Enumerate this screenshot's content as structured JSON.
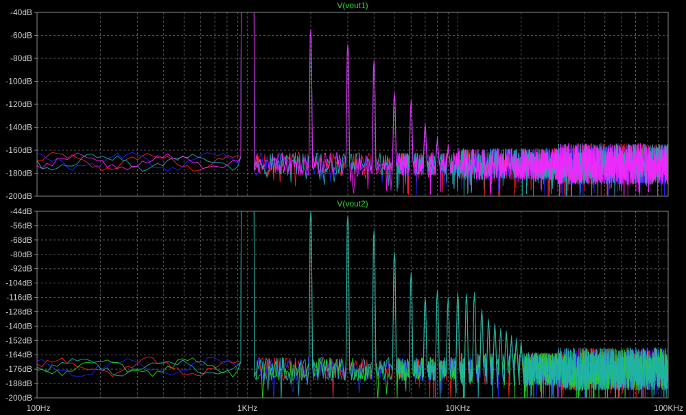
{
  "chart_data": [
    {
      "type": "line",
      "title": "V(vout1)",
      "x_scale": "log",
      "xlim": [
        100,
        100000
      ],
      "ylim": [
        -200,
        -40
      ],
      "y_ticks": [
        "-40dB",
        "-60dB",
        "-80dB",
        "-100dB",
        "-120dB",
        "-140dB",
        "-160dB",
        "-180dB",
        "-200dB"
      ],
      "grid": true,
      "harmonics": [
        {
          "freq": 1000,
          "db": -40
        },
        {
          "freq": 2000,
          "db": -57
        },
        {
          "freq": 3000,
          "db": -70
        },
        {
          "freq": 4000,
          "db": -84
        },
        {
          "freq": 5000,
          "db": -112
        },
        {
          "freq": 6000,
          "db": -118
        },
        {
          "freq": 7000,
          "db": -138
        },
        {
          "freq": 8000,
          "db": -150
        },
        {
          "freq": 9000,
          "db": -157
        }
      ],
      "noise_floor_db": -172,
      "series": [
        {
          "color": "#ff2020"
        },
        {
          "color": "#2222ff"
        },
        {
          "color": "#20b0b0"
        },
        {
          "color": "#ff20ff"
        }
      ]
    },
    {
      "type": "line",
      "title": "V(vout2)",
      "x_scale": "log",
      "xlim": [
        100,
        100000
      ],
      "ylim": [
        -200,
        -44
      ],
      "y_ticks": [
        "-44dB",
        "-56dB",
        "-68dB",
        "-80dB",
        "-92dB",
        "-104dB",
        "-116dB",
        "-128dB",
        "-140dB",
        "-152dB",
        "-164dB",
        "-176dB",
        "-188dB",
        "-200dB"
      ],
      "grid": true,
      "harmonics": [
        {
          "freq": 1000,
          "db": -44
        },
        {
          "freq": 2000,
          "db": -46
        },
        {
          "freq": 3000,
          "db": -50
        },
        {
          "freq": 4000,
          "db": -62
        },
        {
          "freq": 5000,
          "db": -80
        },
        {
          "freq": 6000,
          "db": -97
        },
        {
          "freq": 7000,
          "db": -118
        },
        {
          "freq": 8000,
          "db": -112
        },
        {
          "freq": 9000,
          "db": -118
        },
        {
          "freq": 10000,
          "db": -114
        },
        {
          "freq": 11000,
          "db": -115
        },
        {
          "freq": 12000,
          "db": -114
        },
        {
          "freq": 13000,
          "db": -128
        },
        {
          "freq": 14000,
          "db": -136
        },
        {
          "freq": 15000,
          "db": -140
        },
        {
          "freq": 16000,
          "db": -144
        },
        {
          "freq": 17000,
          "db": -146
        },
        {
          "freq": 18000,
          "db": -150
        },
        {
          "freq": 19000,
          "db": -152
        },
        {
          "freq": 20000,
          "db": -154
        }
      ],
      "noise_floor_db": -176,
      "series": [
        {
          "color": "#ff2020"
        },
        {
          "color": "#2222ff"
        },
        {
          "color": "#22dd22"
        },
        {
          "color": "#20b0b0"
        }
      ]
    }
  ],
  "x_ticks": [
    {
      "value": 100,
      "label": "100Hz"
    },
    {
      "value": 1000,
      "label": "1KHz"
    },
    {
      "value": 10000,
      "label": "10KHz"
    },
    {
      "value": 100000,
      "label": "100KHz"
    }
  ],
  "colors": {
    "background": "#000000",
    "grid": "#5a5a5a",
    "frame": "#8a8a8a",
    "title": "#33dd33",
    "text": "#cfcfcf"
  }
}
